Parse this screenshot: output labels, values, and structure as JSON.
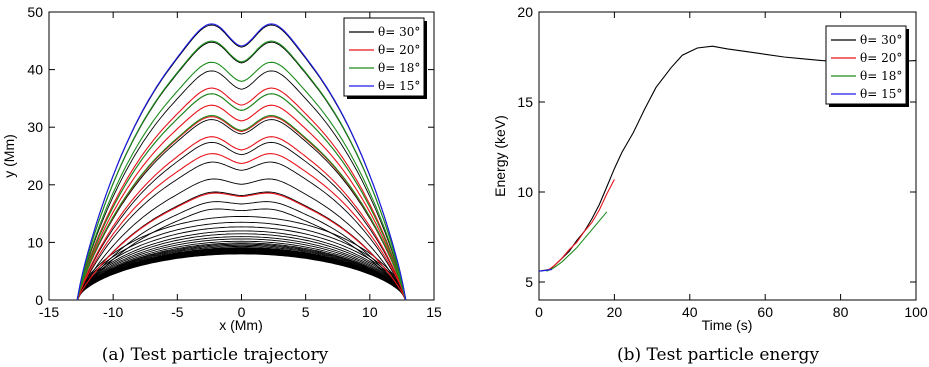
{
  "chart_data": [
    {
      "type": "line",
      "title": "",
      "xlabel": "x (Mm)",
      "ylabel": "y (Mm)",
      "xlim": [
        -15,
        15
      ],
      "ylim": [
        0,
        50
      ],
      "xticks": [
        "-15",
        "-10",
        "-5",
        "0",
        "5",
        "10",
        "15"
      ],
      "yticks": [
        "0",
        "10",
        "20",
        "30",
        "40",
        "50"
      ],
      "caption": "(a) Test particle trajectory",
      "legend": {
        "position": "top-right",
        "entries": [
          {
            "label": "θ= 30°",
            "color": "#000000"
          },
          {
            "label": "θ= 20°",
            "color": "#e8141c"
          },
          {
            "label": "θ= 18°",
            "color": "#1c8c1c"
          },
          {
            "label": "θ= 15°",
            "color": "#1a1ae6"
          }
        ]
      },
      "series": [
        {
          "name": "θ= 30°",
          "color": "#000000",
          "apex_heights": [
            8.0,
            8.1,
            8.2,
            8.3,
            8.4,
            8.5,
            8.6,
            8.7,
            8.8,
            8.9,
            9.0,
            9.1,
            9.3,
            9.5,
            9.7,
            9.9,
            10.2,
            10.6,
            11.0,
            11.5,
            12.0,
            12.7,
            13.5,
            14.5,
            15.7,
            17.0,
            18.7,
            21.0,
            24.0,
            27.5,
            31.5,
            36.0,
            40.0,
            45.0,
            48.0
          ]
        },
        {
          "name": "θ= 20°",
          "color": "#e8141c",
          "apex_heights": [
            18.5,
            25.5,
            28.5,
            32.0,
            34.0,
            37.0
          ]
        },
        {
          "name": "θ= 18°",
          "color": "#1c8c1c",
          "apex_heights": [
            32.2,
            36.0,
            41.5,
            45.2
          ]
        },
        {
          "name": "θ= 15°",
          "color": "#1a1ae6",
          "apex_heights": [
            48.2
          ]
        }
      ]
    },
    {
      "type": "line",
      "title": "",
      "xlabel": "Time (s)",
      "ylabel": "Energy (keV)",
      "xlim": [
        0,
        100
      ],
      "ylim": [
        4,
        20
      ],
      "xticks": [
        "0",
        "20",
        "40",
        "60",
        "80",
        "100"
      ],
      "yticks": [
        "5",
        "10",
        "15",
        "20"
      ],
      "caption": "(b) Test particle energy",
      "legend": {
        "position": "top-right",
        "entries": [
          {
            "label": "θ= 30°",
            "color": "#000000"
          },
          {
            "label": "θ= 20°",
            "color": "#e8141c"
          },
          {
            "label": "θ= 18°",
            "color": "#1c8c1c"
          },
          {
            "label": "θ= 15°",
            "color": "#1a1ae6"
          }
        ]
      },
      "series": [
        {
          "name": "θ= 30°",
          "color": "#000000",
          "x": [
            0,
            3,
            5,
            8,
            10,
            12,
            14,
            16,
            18,
            20,
            22,
            25,
            28,
            31,
            35,
            38,
            42,
            46,
            50,
            55,
            60,
            65,
            70,
            75,
            80,
            85,
            90,
            95,
            100
          ],
          "y": [
            5.6,
            5.7,
            6.1,
            6.7,
            7.3,
            7.8,
            8.5,
            9.3,
            10.3,
            11.3,
            12.2,
            13.3,
            14.6,
            15.8,
            16.9,
            17.6,
            18.0,
            18.1,
            17.95,
            17.8,
            17.65,
            17.5,
            17.4,
            17.3,
            17.25,
            17.2,
            17.2,
            17.25,
            17.3
          ]
        },
        {
          "name": "θ= 20°",
          "color": "#e8141c",
          "x": [
            2,
            4,
            6,
            8,
            10,
            12,
            14,
            16,
            18,
            20
          ],
          "y": [
            5.6,
            5.9,
            6.3,
            6.8,
            7.2,
            7.8,
            8.3,
            9.0,
            9.9,
            10.7
          ]
        },
        {
          "name": "θ= 18°",
          "color": "#1c8c1c",
          "x": [
            2,
            4,
            6,
            8,
            10,
            12,
            14,
            16,
            18
          ],
          "y": [
            5.6,
            5.8,
            6.1,
            6.5,
            6.9,
            7.4,
            7.9,
            8.4,
            8.9
          ]
        },
        {
          "name": "θ= 15°",
          "color": "#1a1ae6",
          "x": [
            0,
            2,
            3.5
          ],
          "y": [
            5.6,
            5.65,
            5.7
          ]
        }
      ]
    }
  ]
}
